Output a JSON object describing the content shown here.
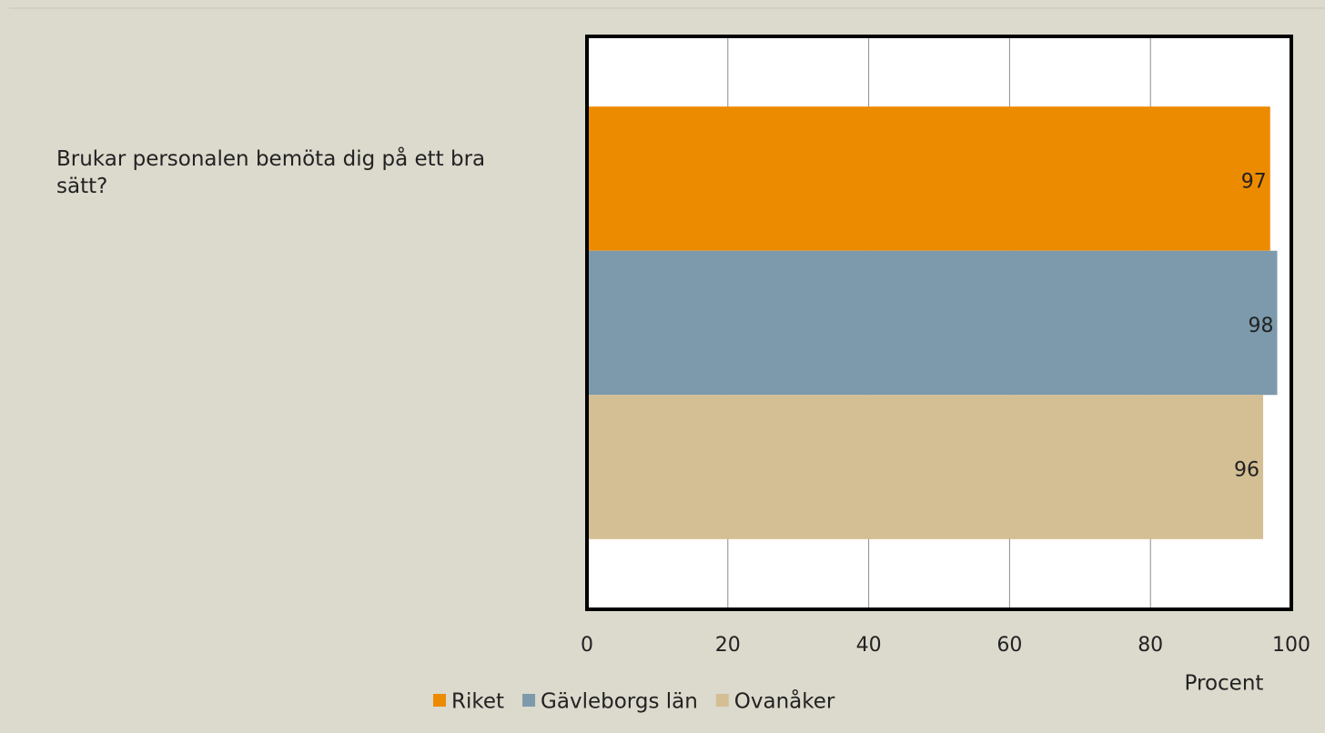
{
  "chart_data": {
    "type": "bar",
    "orientation": "horizontal",
    "categories": [
      "Brukar personalen bemöta dig på ett bra sätt?"
    ],
    "series": [
      {
        "name": "Riket",
        "color": "#ed8b00",
        "values": [
          97
        ]
      },
      {
        "name": "Gävleborgs län",
        "color": "#7c9aab",
        "values": [
          98
        ]
      },
      {
        "name": "Ovanåker",
        "color": "#d4be94",
        "values": [
          96
        ]
      }
    ],
    "xlabel": "Procent",
    "xlim": [
      0,
      100
    ],
    "xticks": [
      0,
      20,
      40,
      60,
      80,
      100
    ],
    "grid": true,
    "legend": "bottom"
  }
}
